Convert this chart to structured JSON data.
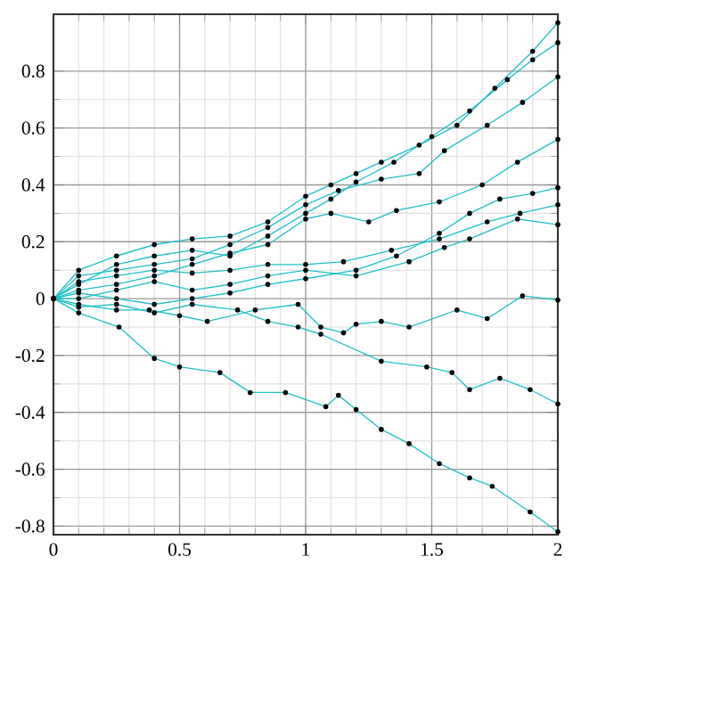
{
  "chart_data": {
    "type": "line",
    "xlim": [
      0,
      2
    ],
    "ylim": [
      -0.83,
      1.0
    ],
    "xticks": [
      0,
      0.5,
      1,
      1.5,
      2
    ],
    "yticks": [
      -0.8,
      -0.6,
      -0.4,
      -0.2,
      0,
      0.2,
      0.4,
      0.6,
      0.8
    ],
    "grid": true,
    "marker": "circle",
    "line_style": "solid",
    "series": [
      {
        "color": "#20c0c8",
        "x": [
          0,
          0.1,
          0.25,
          0.4,
          0.55,
          0.7,
          0.85,
          1.0,
          1.1,
          1.2,
          1.3,
          1.45,
          1.6,
          1.75,
          1.9,
          2
        ],
        "values": [
          0,
          0.1,
          0.15,
          0.19,
          0.21,
          0.22,
          0.27,
          0.36,
          0.4,
          0.44,
          0.48,
          0.54,
          0.61,
          0.74,
          0.87,
          0.97
        ]
      },
      {
        "color": "#20c0c8",
        "x": [
          0,
          0.1,
          0.25,
          0.4,
          0.55,
          0.7,
          0.85,
          1.0,
          1.1,
          1.2,
          1.35,
          1.5,
          1.65,
          1.8,
          1.9,
          2
        ],
        "values": [
          0,
          0.05,
          0.12,
          0.15,
          0.17,
          0.15,
          0.22,
          0.3,
          0.35,
          0.41,
          0.48,
          0.57,
          0.66,
          0.77,
          0.84,
          0.9
        ]
      },
      {
        "color": "#20c0c8",
        "x": [
          0,
          0.1,
          0.25,
          0.4,
          0.55,
          0.7,
          0.85,
          1.0,
          1.13,
          1.3,
          1.45,
          1.55,
          1.72,
          1.86,
          2
        ],
        "values": [
          0,
          0.08,
          0.1,
          0.12,
          0.14,
          0.19,
          0.25,
          0.33,
          0.38,
          0.42,
          0.44,
          0.52,
          0.61,
          0.69,
          0.78
        ]
      },
      {
        "color": "#20c0c8",
        "x": [
          0,
          0.1,
          0.25,
          0.4,
          0.55,
          0.7,
          0.85,
          1.0,
          1.1,
          1.25,
          1.36,
          1.53,
          1.7,
          1.84,
          2
        ],
        "values": [
          0,
          0.03,
          0.05,
          0.08,
          0.12,
          0.16,
          0.19,
          0.28,
          0.3,
          0.27,
          0.31,
          0.34,
          0.4,
          0.48,
          0.56
        ]
      },
      {
        "color": "#20c0c8",
        "x": [
          0,
          0.1,
          0.25,
          0.4,
          0.55,
          0.7,
          0.85,
          1.0,
          1.2,
          1.36,
          1.53,
          1.65,
          1.77,
          1.9,
          2
        ],
        "values": [
          0,
          0.02,
          0.0,
          -0.02,
          0.0,
          0.02,
          0.05,
          0.07,
          0.1,
          0.15,
          0.23,
          0.3,
          0.35,
          0.37,
          0.39
        ]
      },
      {
        "color": "#20c0c8",
        "x": [
          0,
          0.1,
          0.25,
          0.4,
          0.55,
          0.7,
          0.85,
          1.0,
          1.15,
          1.34,
          1.53,
          1.72,
          1.85,
          2
        ],
        "values": [
          0,
          0.06,
          0.08,
          0.1,
          0.09,
          0.1,
          0.12,
          0.12,
          0.13,
          0.17,
          0.21,
          0.27,
          0.3,
          0.33
        ]
      },
      {
        "color": "#20c0c8",
        "x": [
          0,
          0.1,
          0.25,
          0.4,
          0.55,
          0.7,
          0.85,
          1.0,
          1.2,
          1.41,
          1.55,
          1.65,
          1.84,
          2
        ],
        "values": [
          0,
          0.0,
          0.03,
          0.06,
          0.03,
          0.05,
          0.08,
          0.1,
          0.08,
          0.13,
          0.18,
          0.21,
          0.28,
          0.26
        ]
      },
      {
        "color": "#20c0c8",
        "x": [
          0,
          0.1,
          0.25,
          0.38,
          0.5,
          0.61,
          0.8,
          0.97,
          1.06,
          1.15,
          1.2,
          1.3,
          1.41,
          1.6,
          1.72,
          1.86,
          2
        ],
        "values": [
          0,
          -0.02,
          -0.04,
          -0.04,
          -0.06,
          -0.08,
          -0.04,
          -0.02,
          -0.1,
          -0.12,
          -0.09,
          -0.08,
          -0.1,
          -0.04,
          -0.07,
          0.01,
          -0.005
        ]
      },
      {
        "color": "#20c0c8",
        "x": [
          0,
          0.1,
          0.25,
          0.4,
          0.55,
          0.73,
          0.85,
          0.97,
          1.06,
          1.3,
          1.48,
          1.58,
          1.65,
          1.77,
          1.89,
          2
        ],
        "values": [
          0,
          -0.03,
          -0.02,
          -0.05,
          -0.02,
          -0.04,
          -0.08,
          -0.1,
          -0.125,
          -0.22,
          -0.24,
          -0.26,
          -0.32,
          -0.28,
          -0.32,
          -0.37
        ]
      },
      {
        "color": "#20c0c8",
        "x": [
          0,
          0.1,
          0.26,
          0.4,
          0.5,
          0.66,
          0.78,
          0.92,
          1.08,
          1.13,
          1.2,
          1.3,
          1.41,
          1.53,
          1.65,
          1.74,
          1.89,
          2
        ],
        "values": [
          0,
          -0.05,
          -0.1,
          -0.21,
          -0.24,
          -0.26,
          -0.33,
          -0.33,
          -0.38,
          -0.34,
          -0.39,
          -0.46,
          -0.51,
          -0.58,
          -0.63,
          -0.66,
          -0.75,
          -0.82
        ]
      }
    ]
  }
}
